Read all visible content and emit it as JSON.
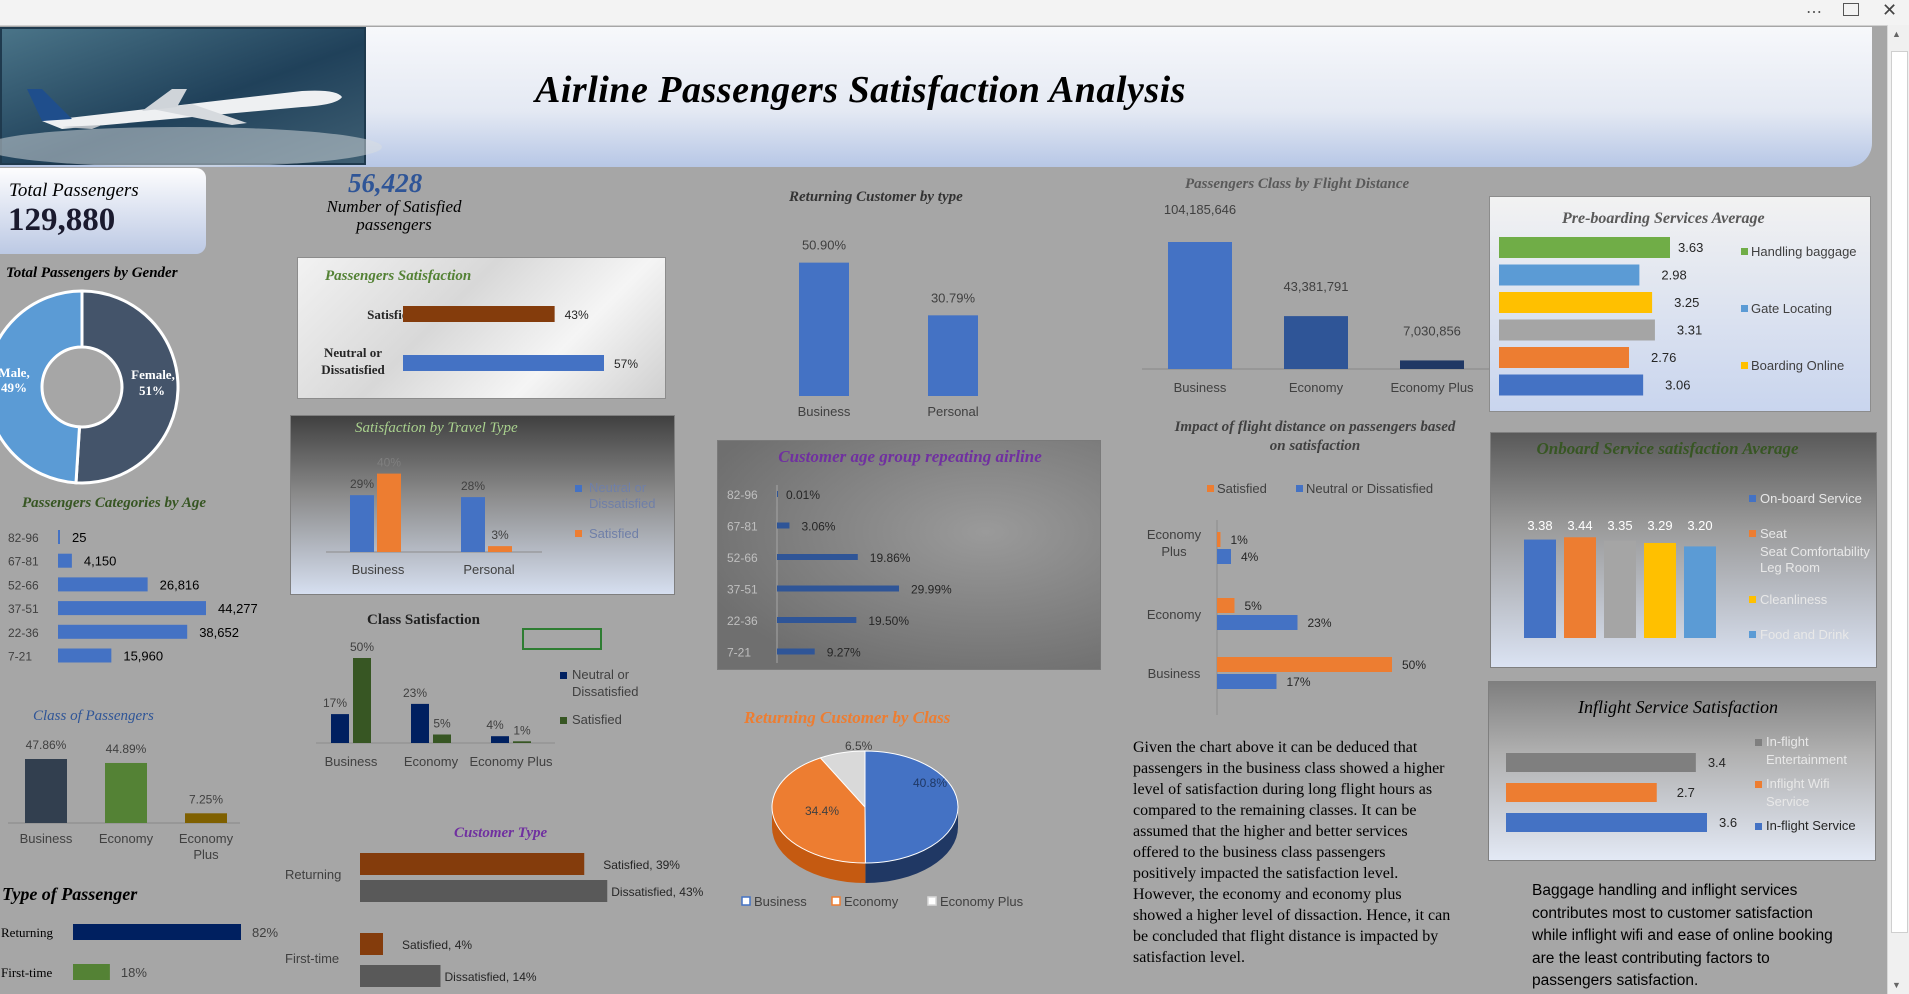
{
  "window": {
    "menu_icon": "ellipsis-icon",
    "restore_icon": "restore-icon",
    "close_icon": "close-icon"
  },
  "title": "Airline Passengers Satisfaction Analysis",
  "kpi": {
    "total_label": "Total Passengers",
    "total_value": "129,880",
    "satisfied_value": "56,428",
    "satisfied_label_line1": "Number of Satisfied",
    "satisfied_label_line2": "passengers"
  },
  "colors": {
    "blue": "#4472c4",
    "orange": "#ed7d31",
    "navy": "#1f2f6f",
    "green": "#375623",
    "brown": "#843c0c",
    "darkgray": "#595959",
    "yellow": "#ffc000",
    "gray": "#a5a5a5",
    "lightblue": "#5b9bd5"
  },
  "summary_text": "Given the chart above  it can be deduced that passengers in the business class showed a higher level of satisfaction during long flight hours as compared to the remaining classes. It can be assumed that the higher and better services offered to the business class passengers positively impacted the satisfaction level. However, the economy and economy plus showed a higher level of dissaction. Hence, it can be concluded that flight distance is impacted by satisfaction level.",
  "conclusion_text": "Baggage handling and inflight services contributes most to customer satisfaction while inflight wifi and ease of online booking are the  least contributing factors to passengers satisfaction.",
  "chart_data": [
    {
      "id": "gender",
      "type": "pie",
      "title": "Total Passengers by Gender",
      "categories": [
        "Male",
        "Female"
      ],
      "values": [
        49,
        51
      ],
      "labels": [
        "Male,\n49%",
        "Female,\n51%"
      ]
    },
    {
      "id": "age",
      "type": "bar",
      "title": "Passengers Categories by Age",
      "categories": [
        "82-96",
        "67-81",
        "52-66",
        "37-51",
        "22-36",
        "7-21"
      ],
      "values": [
        25,
        4150,
        26816,
        44277,
        38652,
        15960
      ],
      "labels": [
        "25",
        "4,150",
        "26,816",
        "44,277",
        "38,652",
        "15,960"
      ]
    },
    {
      "id": "class",
      "type": "bar",
      "title": "Class of Passengers",
      "categories": [
        "Business",
        "Economy",
        "Economy Plus"
      ],
      "values": [
        47.86,
        44.89,
        7.25
      ],
      "labels": [
        "47.86%",
        "44.89%",
        "7.25%"
      ]
    },
    {
      "id": "ptype",
      "type": "bar",
      "title": "Type of Passenger",
      "categories": [
        "Returning",
        "First-time"
      ],
      "values": [
        82,
        18
      ],
      "labels": [
        "82%",
        "18%"
      ]
    },
    {
      "id": "psat",
      "type": "bar",
      "title": "Passengers Satisfaction",
      "categories": [
        "Satisfied",
        "Neutral or Dissatisfied"
      ],
      "values": [
        43,
        57
      ],
      "labels": [
        "43%",
        "57%"
      ]
    },
    {
      "id": "travel",
      "type": "bar",
      "title": "Satisfaction by Travel Type",
      "categories": [
        "Business",
        "Personal"
      ],
      "series": [
        {
          "name": "Neutral or Dissatisfied",
          "values": [
            29,
            28
          ],
          "labels": [
            "29%",
            "28%"
          ]
        },
        {
          "name": "Satisfied",
          "values": [
            40,
            3
          ],
          "labels": [
            "40%",
            "3%"
          ]
        }
      ]
    },
    {
      "id": "classsat",
      "type": "bar",
      "title": "Class Satisfaction",
      "categories": [
        "Business",
        "Economy",
        "Economy Plus"
      ],
      "series": [
        {
          "name": "Neutral or Dissatisfied",
          "values": [
            17,
            23,
            4
          ],
          "labels": [
            "17%",
            "23%",
            "4%"
          ]
        },
        {
          "name": "Satisfied",
          "values": [
            50,
            5,
            1
          ],
          "labels": [
            "50%",
            "5%",
            "1%"
          ]
        }
      ]
    },
    {
      "id": "ctype",
      "type": "bar",
      "title": "Customer Type",
      "categories": [
        "Returning",
        "First-time"
      ],
      "series": [
        {
          "name": "Satisfied",
          "values": [
            39,
            4
          ],
          "labels": [
            "Satisfied, 39%",
            "Satisfied, 4%"
          ]
        },
        {
          "name": "Dissatisfied",
          "values": [
            43,
            14
          ],
          "labels": [
            "Dissatisfied, 43%",
            "Dissatisfied, 14%"
          ]
        }
      ]
    },
    {
      "id": "rettype",
      "type": "bar",
      "title": "Returning Customer by type",
      "categories": [
        "Business",
        "Personal"
      ],
      "values": [
        50.9,
        30.79
      ],
      "labels": [
        "50.90%",
        "30.79%"
      ]
    },
    {
      "id": "agerep",
      "type": "bar",
      "title": "Customer age group repeating airline",
      "categories": [
        "82-96",
        "67-81",
        "52-66",
        "37-51",
        "22-36",
        "7-21"
      ],
      "values": [
        0.01,
        3.06,
        19.86,
        29.99,
        19.5,
        9.27
      ],
      "labels": [
        "0.01%",
        "3.06%",
        "19.86%",
        "29.99%",
        "19.50%",
        "9.27%"
      ]
    },
    {
      "id": "retclass",
      "type": "pie",
      "title": "Returning Customer by Class",
      "categories": [
        "Business",
        "Economy",
        "Economy Plus"
      ],
      "values": [
        40.8,
        34.4,
        6.5
      ],
      "labels": [
        "40.8%",
        "34.4%",
        "6.5%"
      ]
    },
    {
      "id": "distance",
      "type": "bar",
      "title": "Passengers Class by Flight Distance",
      "categories": [
        "Business",
        "Economy",
        "Economy Plus"
      ],
      "values": [
        104185646,
        43381791,
        7030856
      ],
      "labels": [
        "104,185,646",
        "43,381,791",
        "7,030,856"
      ]
    },
    {
      "id": "impact",
      "type": "bar",
      "title": "Impact of flight distance on passengers based on satisfaction",
      "categories": [
        "Economy Plus",
        "Economy",
        "Business"
      ],
      "series": [
        {
          "name": "Satisfied",
          "values": [
            1,
            5,
            50
          ],
          "labels": [
            "1%",
            "5%",
            "50%"
          ]
        },
        {
          "name": "Neutral or Dissatisfied",
          "values": [
            4,
            23,
            17
          ],
          "labels": [
            "4%",
            "23%",
            "17%"
          ]
        }
      ]
    },
    {
      "id": "preboard",
      "type": "bar",
      "title": "Pre-boarding Services Average",
      "values": [
        3.63,
        2.98,
        3.25,
        3.31,
        2.76,
        3.06
      ],
      "labels": [
        "3.63",
        "2.98",
        "3.25",
        "3.31",
        "2.76",
        "3.06"
      ],
      "legend": [
        "Handling baggage",
        "Gate Locating",
        "Boarding Online"
      ]
    },
    {
      "id": "onboard",
      "type": "bar",
      "title": "Onboard Service satisfaction Average",
      "categories": [
        "On-board Service",
        "Seat Comfortability",
        "Leg Room",
        "Cleanliness",
        "Food and Drink"
      ],
      "values": [
        3.38,
        3.44,
        3.35,
        3.29,
        3.2
      ],
      "labels": [
        "3.38",
        "3.44",
        "3.35",
        "3.29",
        "3.20"
      ],
      "legend": [
        "On-board Service",
        "Seat Comfortability",
        "Leg Room",
        "Cleanliness",
        "Food and Drink"
      ]
    },
    {
      "id": "inflight",
      "type": "bar",
      "title": "Inflight Service Satisfaction",
      "categories": [
        "In-flight Entertainment",
        "Inflight Wifi Service",
        "In-flight Service"
      ],
      "values": [
        3.4,
        2.7,
        3.6
      ],
      "labels": [
        "3.4",
        "2.7",
        "3.6"
      ],
      "legend": [
        "In-flight Entertainment",
        "Inflight Wifi Service",
        "In-flight Service"
      ]
    }
  ]
}
